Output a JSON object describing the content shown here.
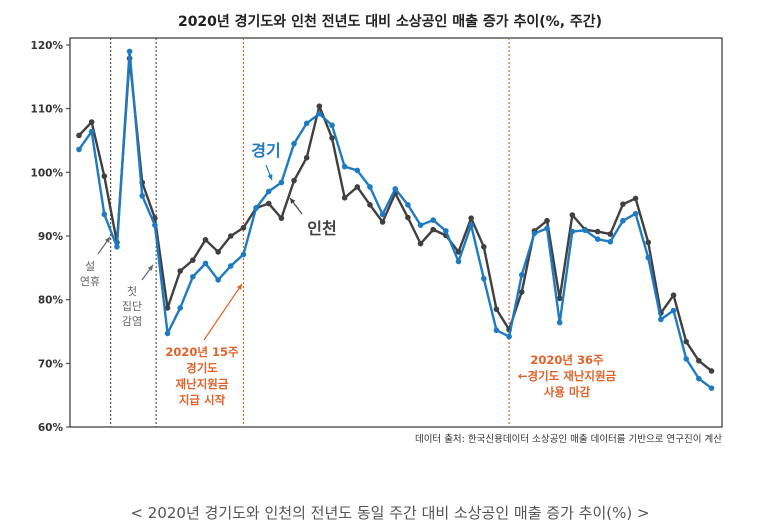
{
  "chart_data": {
    "type": "line",
    "title": "2020년 경기도와 인천 전년도 대비 소상공인 매출 증가 추이(%, 주간)",
    "xlabel": "",
    "ylabel": "",
    "x": [
      2,
      3,
      4,
      5,
      6,
      7,
      8,
      9,
      10,
      11,
      12,
      13,
      14,
      15,
      16,
      17,
      18,
      19,
      20,
      21,
      22,
      23,
      24,
      25,
      26,
      27,
      28,
      29,
      30,
      31,
      32,
      33,
      34,
      35,
      36,
      37,
      38,
      39,
      40,
      41,
      42,
      43,
      44,
      45,
      46,
      47,
      48,
      49,
      50,
      51,
      52
    ],
    "ylim": [
      60,
      120
    ],
    "yticks": [
      "60%",
      "70%",
      "80%",
      "90%",
      "100%",
      "110%",
      "120%"
    ],
    "grid": false,
    "series": [
      {
        "name": "인천",
        "color": "#404040",
        "values": [
          105.8,
          107.9,
          99.4,
          89.0,
          117.9,
          98.4,
          92.8,
          78.7,
          84.5,
          86.2,
          89.4,
          87.5,
          90.0,
          91.3,
          94.4,
          95.1,
          92.8,
          98.7,
          102.3,
          110.4,
          105.4,
          96.0,
          97.7,
          94.9,
          92.2,
          96.7,
          92.9,
          88.8,
          91.0,
          90.1,
          87.5,
          92.8,
          88.3,
          78.5,
          75.3,
          81.2,
          90.8,
          92.4,
          80.2,
          93.3,
          91.0,
          90.7,
          90.3,
          95.0,
          95.9,
          89.0,
          77.9,
          80.7,
          73.4,
          70.4,
          68.8
        ]
      },
      {
        "name": "경기",
        "color": "#1f7bc1",
        "values": [
          103.6,
          106.4,
          93.4,
          88.3,
          119.0,
          96.3,
          91.7,
          74.7,
          78.7,
          83.6,
          85.7,
          83.1,
          85.3,
          87.1,
          94.4,
          97.0,
          98.4,
          104.5,
          107.7,
          109.2,
          107.4,
          100.9,
          100.3,
          97.7,
          93.4,
          97.4,
          94.9,
          91.7,
          92.5,
          90.8,
          86.0,
          91.7,
          83.3,
          75.2,
          74.2,
          83.9,
          90.4,
          91.2,
          76.4,
          90.7,
          90.9,
          89.5,
          89.1,
          92.4,
          93.5,
          86.6,
          76.9,
          78.3,
          70.7,
          67.6,
          66.1
        ]
      }
    ],
    "annotations": [
      {
        "week": 4.5,
        "style": "gray-dotted",
        "text": [
          "설",
          "연휴"
        ]
      },
      {
        "week": 8.1,
        "style": "gray-dotted",
        "text": [
          "첫",
          "집단",
          "감염"
        ]
      },
      {
        "week": 15,
        "style": "orange-dotted",
        "text": [
          "2020년 15주",
          "경기도",
          "재난지원금",
          "지급 시작"
        ]
      },
      {
        "week": 36,
        "style": "orange-dotted",
        "text": [
          "2020년 36주",
          "←경기도 재난지원금",
          "사용 마감"
        ]
      }
    ],
    "source": "데이터 출처: 한국신용데이터 소상공인 매출 데이터를 기반으로 연구진이 계산",
    "accent_color": "#e0622a"
  },
  "caption": "< 2020년 경기도와 인천의 전년도 동일 주간 대비 소상공인 매출 증가 추이(%) >"
}
